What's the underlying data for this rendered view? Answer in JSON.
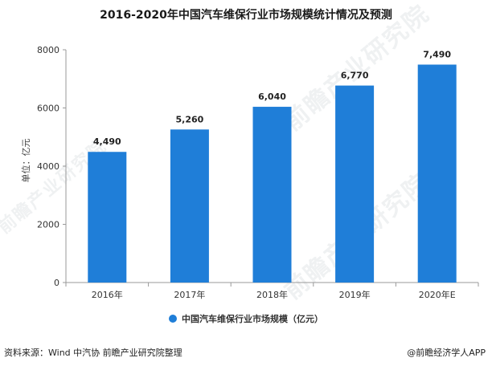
{
  "title": "2016-2020年中国汽车维保行业市场规模统计情况及预测",
  "chart_data": {
    "type": "bar",
    "categories": [
      "2016年",
      "2017年",
      "2018年",
      "2019年",
      "2020年E"
    ],
    "values": [
      4490,
      5260,
      6040,
      6770,
      7490
    ],
    "value_labels": [
      "4,490",
      "5,260",
      "6,040",
      "6,770",
      "7,490"
    ],
    "series": [
      {
        "name": "中国汽车维保行业市场规模（亿元）",
        "values": [
          4490,
          5260,
          6040,
          6770,
          7490
        ]
      }
    ],
    "ylabel": "单位：亿元",
    "ylim": [
      0,
      8000
    ],
    "yticks": [
      0,
      2000,
      4000,
      6000,
      8000
    ],
    "grid": false,
    "legend_position": "bottom",
    "bar_color": "#1f7ed8"
  },
  "source_text": "资料来源：Wind 中汽协 前瞻产业研究院整理",
  "brand_text": "@前瞻经济学人APP",
  "watermark_text": "前瞻产业研究院"
}
